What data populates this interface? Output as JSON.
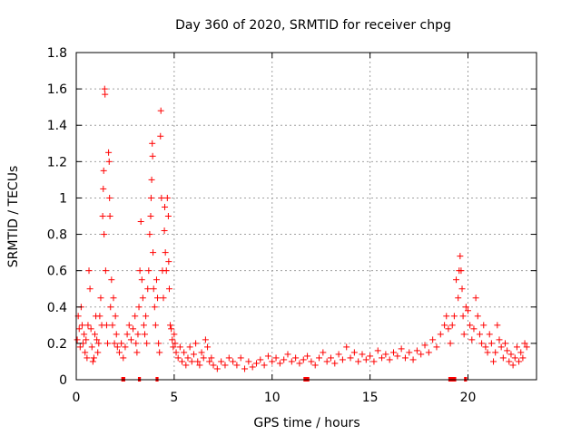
{
  "chart_data": {
    "type": "scatter",
    "title": "Day 360 of 2020, SRMTID for receiver chpg",
    "xlabel": "GPS time / hours",
    "ylabel": "SRMTID / TECUs",
    "xlim": [
      0,
      23.5
    ],
    "ylim": [
      0,
      1.8
    ],
    "xticks": [
      0,
      5,
      10,
      15,
      20
    ],
    "yticks": [
      0,
      0.2,
      0.4,
      0.6,
      0.8,
      1,
      1.2,
      1.4,
      1.6,
      1.8
    ],
    "xtick_labels": [
      "0",
      "5",
      "10",
      "15",
      "20"
    ],
    "ytick_labels": [
      "0",
      "0.2",
      "0.4",
      "0.6",
      "0.8",
      "1",
      "1.2",
      "1.4",
      "1.6",
      "1.8"
    ],
    "grid": true,
    "marker_color": "#ff0000",
    "series": [
      {
        "name": "SRMTID",
        "points": [
          [
            0.05,
            0.22
          ],
          [
            0.1,
            0.35
          ],
          [
            0.15,
            0.28
          ],
          [
            0.2,
            0.18
          ],
          [
            0.25,
            0.4
          ],
          [
            0.3,
            0.3
          ],
          [
            0.35,
            0.2
          ],
          [
            0.4,
            0.25
          ],
          [
            0.45,
            0.15
          ],
          [
            0.5,
            0.22
          ],
          [
            0.55,
            0.12
          ],
          [
            0.6,
            0.3
          ],
          [
            0.65,
            0.6
          ],
          [
            0.7,
            0.5
          ],
          [
            0.75,
            0.28
          ],
          [
            0.8,
            0.18
          ],
          [
            0.85,
            0.1
          ],
          [
            0.9,
            0.12
          ],
          [
            0.95,
            0.25
          ],
          [
            1.0,
            0.35
          ],
          [
            1.05,
            0.22
          ],
          [
            1.1,
            0.15
          ],
          [
            1.15,
            0.2
          ],
          [
            1.2,
            0.35
          ],
          [
            1.25,
            0.45
          ],
          [
            1.3,
            0.3
          ],
          [
            1.35,
            0.9
          ],
          [
            1.38,
            1.05
          ],
          [
            1.4,
            1.15
          ],
          [
            1.42,
            0.8
          ],
          [
            1.45,
            1.6
          ],
          [
            1.47,
            1.57
          ],
          [
            1.5,
            0.6
          ],
          [
            1.55,
            0.3
          ],
          [
            1.6,
            0.2
          ],
          [
            1.65,
            1.25
          ],
          [
            1.68,
            1.2
          ],
          [
            1.7,
            1.0
          ],
          [
            1.72,
            0.9
          ],
          [
            1.75,
            0.4
          ],
          [
            1.8,
            0.55
          ],
          [
            1.85,
            0.3
          ],
          [
            1.9,
            0.45
          ],
          [
            1.95,
            0.2
          ],
          [
            2.0,
            0.35
          ],
          [
            2.05,
            0.25
          ],
          [
            2.1,
            0.18
          ],
          [
            2.2,
            0.15
          ],
          [
            2.3,
            0.2
          ],
          [
            2.4,
            0.12
          ],
          [
            2.5,
            0.18
          ],
          [
            2.6,
            0.25
          ],
          [
            2.7,
            0.3
          ],
          [
            2.8,
            0.22
          ],
          [
            2.9,
            0.28
          ],
          [
            3.0,
            0.35
          ],
          [
            3.05,
            0.2
          ],
          [
            3.1,
            0.15
          ],
          [
            3.15,
            0.25
          ],
          [
            3.2,
            0.4
          ],
          [
            3.25,
            0.6
          ],
          [
            3.3,
            0.87
          ],
          [
            3.35,
            0.55
          ],
          [
            3.4,
            0.45
          ],
          [
            3.45,
            0.3
          ],
          [
            3.5,
            0.25
          ],
          [
            3.55,
            0.35
          ],
          [
            3.6,
            0.2
          ],
          [
            3.65,
            0.5
          ],
          [
            3.7,
            0.6
          ],
          [
            3.75,
            0.8
          ],
          [
            3.8,
            0.9
          ],
          [
            3.82,
            1.0
          ],
          [
            3.85,
            1.1
          ],
          [
            3.88,
            1.3
          ],
          [
            3.9,
            1.23
          ],
          [
            3.92,
            0.7
          ],
          [
            3.95,
            0.5
          ],
          [
            4.0,
            0.4
          ],
          [
            4.05,
            0.3
          ],
          [
            4.1,
            0.55
          ],
          [
            4.15,
            0.45
          ],
          [
            4.2,
            0.2
          ],
          [
            4.25,
            0.15
          ],
          [
            4.3,
            1.34
          ],
          [
            4.32,
            1.48
          ],
          [
            4.35,
            1.0
          ],
          [
            4.4,
            0.6
          ],
          [
            4.45,
            0.45
          ],
          [
            4.5,
            0.82
          ],
          [
            4.52,
            0.95
          ],
          [
            4.55,
            0.7
          ],
          [
            4.6,
            0.6
          ],
          [
            4.65,
            1.0
          ],
          [
            4.7,
            0.9
          ],
          [
            4.72,
            0.65
          ],
          [
            4.75,
            0.5
          ],
          [
            4.8,
            0.3
          ],
          [
            4.85,
            0.28
          ],
          [
            4.9,
            0.22
          ],
          [
            4.95,
            0.18
          ],
          [
            5.0,
            0.25
          ],
          [
            5.05,
            0.2
          ],
          [
            5.1,
            0.15
          ],
          [
            5.2,
            0.12
          ],
          [
            5.3,
            0.18
          ],
          [
            5.4,
            0.1
          ],
          [
            5.5,
            0.15
          ],
          [
            5.6,
            0.08
          ],
          [
            5.7,
            0.12
          ],
          [
            5.8,
            0.18
          ],
          [
            5.9,
            0.1
          ],
          [
            6.0,
            0.14
          ],
          [
            6.1,
            0.2
          ],
          [
            6.2,
            0.1
          ],
          [
            6.3,
            0.08
          ],
          [
            6.4,
            0.15
          ],
          [
            6.5,
            0.12
          ],
          [
            6.6,
            0.22
          ],
          [
            6.7,
            0.18
          ],
          [
            6.8,
            0.1
          ],
          [
            6.9,
            0.12
          ],
          [
            7.0,
            0.08
          ],
          [
            7.2,
            0.06
          ],
          [
            7.4,
            0.1
          ],
          [
            7.6,
            0.08
          ],
          [
            7.8,
            0.12
          ],
          [
            8.0,
            0.1
          ],
          [
            8.2,
            0.08
          ],
          [
            8.4,
            0.12
          ],
          [
            8.6,
            0.06
          ],
          [
            8.8,
            0.1
          ],
          [
            9.0,
            0.07
          ],
          [
            9.2,
            0.09
          ],
          [
            9.4,
            0.11
          ],
          [
            9.6,
            0.08
          ],
          [
            9.8,
            0.13
          ],
          [
            10.0,
            0.1
          ],
          [
            10.2,
            0.12
          ],
          [
            10.4,
            0.09
          ],
          [
            10.6,
            0.11
          ],
          [
            10.8,
            0.14
          ],
          [
            11.0,
            0.1
          ],
          [
            11.2,
            0.12
          ],
          [
            11.4,
            0.09
          ],
          [
            11.6,
            0.11
          ],
          [
            11.8,
            0.13
          ],
          [
            12.0,
            0.1
          ],
          [
            12.2,
            0.08
          ],
          [
            12.4,
            0.12
          ],
          [
            12.6,
            0.15
          ],
          [
            12.8,
            0.1
          ],
          [
            13.0,
            0.12
          ],
          [
            13.2,
            0.09
          ],
          [
            13.4,
            0.14
          ],
          [
            13.6,
            0.11
          ],
          [
            13.8,
            0.18
          ],
          [
            14.0,
            0.12
          ],
          [
            14.2,
            0.15
          ],
          [
            14.4,
            0.1
          ],
          [
            14.6,
            0.14
          ],
          [
            14.8,
            0.11
          ],
          [
            15.0,
            0.13
          ],
          [
            15.2,
            0.1
          ],
          [
            15.4,
            0.16
          ],
          [
            15.6,
            0.12
          ],
          [
            15.8,
            0.14
          ],
          [
            16.0,
            0.11
          ],
          [
            16.2,
            0.15
          ],
          [
            16.4,
            0.13
          ],
          [
            16.6,
            0.17
          ],
          [
            16.8,
            0.12
          ],
          [
            17.0,
            0.15
          ],
          [
            17.2,
            0.11
          ],
          [
            17.4,
            0.16
          ],
          [
            17.6,
            0.14
          ],
          [
            17.8,
            0.19
          ],
          [
            18.0,
            0.15
          ],
          [
            18.2,
            0.22
          ],
          [
            18.4,
            0.18
          ],
          [
            18.6,
            0.25
          ],
          [
            18.8,
            0.3
          ],
          [
            18.9,
            0.35
          ],
          [
            19.0,
            0.28
          ],
          [
            19.1,
            0.2
          ],
          [
            19.2,
            0.3
          ],
          [
            19.3,
            0.35
          ],
          [
            19.4,
            0.55
          ],
          [
            19.5,
            0.45
          ],
          [
            19.55,
            0.6
          ],
          [
            19.6,
            0.68
          ],
          [
            19.65,
            0.6
          ],
          [
            19.7,
            0.5
          ],
          [
            19.75,
            0.35
          ],
          [
            19.8,
            0.25
          ],
          [
            19.9,
            0.4
          ],
          [
            20.0,
            0.38
          ],
          [
            20.1,
            0.3
          ],
          [
            20.2,
            0.22
          ],
          [
            20.3,
            0.28
          ],
          [
            20.4,
            0.45
          ],
          [
            20.5,
            0.35
          ],
          [
            20.6,
            0.25
          ],
          [
            20.7,
            0.2
          ],
          [
            20.8,
            0.3
          ],
          [
            20.9,
            0.18
          ],
          [
            21.0,
            0.15
          ],
          [
            21.1,
            0.25
          ],
          [
            21.2,
            0.2
          ],
          [
            21.3,
            0.1
          ],
          [
            21.4,
            0.15
          ],
          [
            21.5,
            0.3
          ],
          [
            21.6,
            0.22
          ],
          [
            21.7,
            0.18
          ],
          [
            21.8,
            0.12
          ],
          [
            21.9,
            0.2
          ],
          [
            22.0,
            0.16
          ],
          [
            22.1,
            0.1
          ],
          [
            22.2,
            0.14
          ],
          [
            22.3,
            0.08
          ],
          [
            22.4,
            0.12
          ],
          [
            22.5,
            0.18
          ],
          [
            22.6,
            0.1
          ],
          [
            22.7,
            0.15
          ],
          [
            22.8,
            0.12
          ],
          [
            22.9,
            0.2
          ],
          [
            23.0,
            0.18
          ]
        ]
      }
    ],
    "gap_markers": [
      [
        2.3,
        2.5
      ],
      [
        3.15,
        3.3
      ],
      [
        4.05,
        4.2
      ],
      [
        11.6,
        11.9
      ],
      [
        19.0,
        19.4
      ],
      [
        19.8,
        19.95
      ]
    ]
  }
}
